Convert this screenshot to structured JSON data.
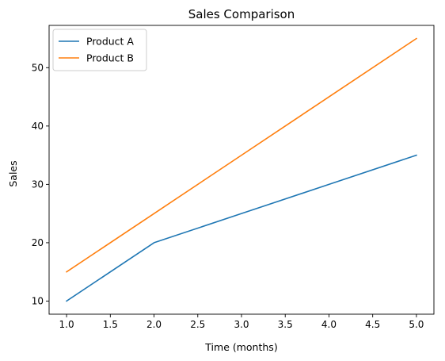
{
  "chart_data": {
    "type": "line",
    "title": "Sales Comparison",
    "xlabel": "Time (months)",
    "ylabel": "Sales",
    "x": [
      1,
      2,
      3,
      4,
      5
    ],
    "series": [
      {
        "name": "Product A",
        "values": [
          10,
          20,
          25,
          30,
          35
        ],
        "color": "#1f77b4"
      },
      {
        "name": "Product B",
        "values": [
          15,
          25,
          35,
          45,
          55
        ],
        "color": "#ff7f0e"
      }
    ],
    "xlim": [
      0.8,
      5.2
    ],
    "ylim": [
      7.75,
      57.25
    ],
    "xticks": [
      "1.0",
      "1.5",
      "2.0",
      "2.5",
      "3.0",
      "3.5",
      "4.0",
      "4.5",
      "5.0"
    ],
    "yticks": [
      "10",
      "20",
      "30",
      "40",
      "50"
    ],
    "grid": false,
    "legend_position": "top-left"
  }
}
